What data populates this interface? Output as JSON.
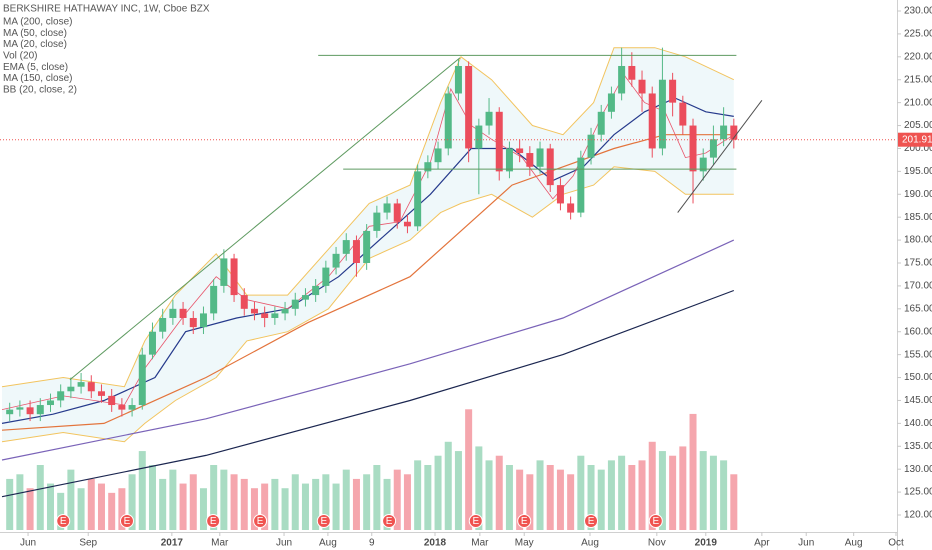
{
  "chart_data": {
    "type": "candlestick",
    "title": "BERKSHIRE HATHAWAY INC, 1W, Cboe BZX",
    "xlim": [
      -0.4,
      175.5
    ],
    "ylim": [
      120,
      230
    ],
    "yticks": [
      {
        "value": 120,
        "label": "120.00"
      },
      {
        "value": 125,
        "label": "125.00"
      },
      {
        "value": 130,
        "label": "130.00"
      },
      {
        "value": 135,
        "label": "135.00"
      },
      {
        "value": 140,
        "label": "140.00"
      },
      {
        "value": 145,
        "label": "145.00"
      },
      {
        "value": 150,
        "label": "150.00"
      },
      {
        "value": 155,
        "label": "155.00"
      },
      {
        "value": 160,
        "label": "160.00"
      },
      {
        "value": 165,
        "label": "165.00"
      },
      {
        "value": 170,
        "label": "170.00"
      },
      {
        "value": 175,
        "label": "175.00"
      },
      {
        "value": 180,
        "label": "180.00"
      },
      {
        "value": 185,
        "label": "185.00"
      },
      {
        "value": 190,
        "label": "190.00"
      },
      {
        "value": 195,
        "label": "195.00"
      },
      {
        "value": 200,
        "label": "200.00"
      },
      {
        "value": 205,
        "label": "205.00"
      },
      {
        "value": 210,
        "label": "210.00"
      },
      {
        "value": 215,
        "label": "215.00"
      },
      {
        "value": 220,
        "label": "220.00"
      },
      {
        "value": 225,
        "label": "225.00"
      },
      {
        "value": 230,
        "label": "230.00"
      }
    ],
    "xticks": [
      {
        "value": 5.1,
        "label": "Jun"
      },
      {
        "value": 16.9,
        "label": "Sep"
      },
      {
        "value": 33.3,
        "label": "2017"
      },
      {
        "value": 42.7,
        "label": "Mar"
      },
      {
        "value": 55.3,
        "label": "Jun"
      },
      {
        "value": 63.9,
        "label": "Aug"
      },
      {
        "value": 72.5,
        "label": "9"
      },
      {
        "value": 84.9,
        "label": "2018"
      },
      {
        "value": 93.7,
        "label": "Mar"
      },
      {
        "value": 102.4,
        "label": "May"
      },
      {
        "value": 115.3,
        "label": "Aug"
      },
      {
        "value": 128.4,
        "label": "Nov"
      },
      {
        "value": 138,
        "label": "2019"
      },
      {
        "value": 149,
        "label": "Apr"
      },
      {
        "value": 157.7,
        "label": "Jun"
      },
      {
        "value": 167,
        "label": "Aug"
      },
      {
        "value": 175.3,
        "label": "Oct"
      }
    ],
    "up_color": "#53b987",
    "down_color": "#eb4d5c",
    "x": [
      1.5,
      3.5,
      5.5,
      7.5,
      9.5,
      11.5,
      13.5,
      15.5,
      17.5,
      19.5,
      21.5,
      23.5,
      25.5,
      27.5,
      29.5,
      31.5,
      33.5,
      35.5,
      37.5,
      39.5,
      41.5,
      43.5,
      45.5,
      47.5,
      49.5,
      51.5,
      53.5,
      55.5,
      57.5,
      59.5,
      61.5,
      63.5,
      65.5,
      67.5,
      69.5,
      71.5,
      73.5,
      75.5,
      77.5,
      79.5,
      81.5,
      83.5,
      85.5,
      87.5,
      89.5,
      91.5,
      93.5,
      95.5,
      97.5,
      99.5,
      101.5,
      103.5,
      105.5,
      107.5,
      109.5,
      111.5,
      113.5,
      115.5,
      117.5,
      119.5,
      121.5,
      123.5,
      125.5,
      127.5,
      129.5,
      131.5,
      133.5,
      135.5,
      137.5,
      139.5,
      141.5,
      143.5
    ],
    "open": [
      142,
      143,
      143.5,
      142,
      144,
      145,
      147,
      148,
      149,
      147,
      146,
      144,
      143,
      144,
      155,
      160,
      163,
      165,
      163,
      161,
      164,
      170,
      176,
      168,
      165,
      164,
      163,
      164,
      165,
      167,
      168,
      170,
      174,
      177,
      180,
      175,
      182,
      186,
      188,
      184,
      183,
      195,
      197,
      200,
      212,
      218,
      200,
      205,
      208,
      195,
      200,
      199,
      196,
      200,
      192,
      188,
      186,
      198,
      203,
      208,
      212,
      218,
      215,
      212,
      200,
      215,
      210,
      205,
      195,
      198,
      202,
      205
    ],
    "high": [
      144.5,
      145,
      145,
      145.5,
      146.5,
      148.5,
      150,
      151,
      150.5,
      148.5,
      147.5,
      145.5,
      145.5,
      156.5,
      162,
      165,
      167,
      166.5,
      164.5,
      165.5,
      171.5,
      178,
      177,
      169.5,
      166.5,
      165.5,
      165.5,
      166.5,
      168.5,
      169.5,
      171.5,
      175.5,
      178.5,
      181.5,
      181,
      183.5,
      187.5,
      189.5,
      189,
      185.5,
      196.5,
      198.5,
      201.5,
      213.5,
      219.5,
      219,
      206.5,
      211,
      209,
      201.5,
      202,
      200.5,
      201.5,
      201,
      193.5,
      189.5,
      199.5,
      204.5,
      209.5,
      213.5,
      222,
      221,
      217,
      213.5,
      222,
      216.5,
      211.5,
      206.5,
      200,
      205,
      209,
      206.5
    ],
    "low": [
      140.5,
      141.5,
      140.5,
      140.5,
      142.5,
      143.5,
      145.5,
      146.5,
      145.5,
      144.5,
      142.5,
      141.5,
      141.5,
      143,
      154,
      158.5,
      161.5,
      161.5,
      159.5,
      159.5,
      162.5,
      168.5,
      166.5,
      163.5,
      162.5,
      161,
      161.5,
      162.5,
      163.5,
      165.5,
      166.5,
      168.5,
      172.5,
      175.5,
      172,
      173.5,
      180.5,
      184.5,
      182.5,
      181.5,
      182,
      193.5,
      195.5,
      198.5,
      210.5,
      197,
      190,
      203,
      193,
      193.5,
      197,
      194,
      194.5,
      190.5,
      186.5,
      184.5,
      185,
      196.5,
      201.5,
      206.5,
      210.5,
      213.5,
      208,
      198,
      198.5,
      207,
      203,
      188,
      193,
      196.5,
      200.5,
      200
    ],
    "close": [
      143,
      143.5,
      142,
      144,
      145,
      147,
      148,
      149,
      147,
      146,
      144,
      143,
      144,
      155,
      160,
      163,
      165,
      163,
      161,
      164,
      170,
      176,
      168,
      165,
      164,
      163,
      164,
      165,
      167,
      168,
      170,
      174,
      177,
      180,
      175,
      182,
      186,
      188,
      184,
      183,
      195,
      197,
      200,
      212,
      218,
      200,
      205,
      208,
      195,
      200,
      199,
      196,
      200,
      192,
      188,
      186,
      198,
      203,
      208,
      212,
      218,
      215,
      212,
      200,
      215,
      210,
      205,
      195,
      198,
      202,
      205,
      201.91
    ],
    "vlim": [
      0,
      140
    ],
    "volume": [
      55,
      60,
      45,
      70,
      50,
      40,
      65,
      45,
      55,
      50,
      40,
      45,
      60,
      85,
      70,
      55,
      65,
      50,
      60,
      45,
      70,
      65,
      60,
      55,
      45,
      50,
      55,
      45,
      60,
      50,
      55,
      60,
      50,
      65,
      55,
      60,
      70,
      55,
      65,
      60,
      75,
      70,
      80,
      95,
      85,
      130,
      90,
      75,
      80,
      70,
      65,
      60,
      75,
      70,
      65,
      60,
      80,
      70,
      65,
      75,
      80,
      70,
      75,
      95,
      85,
      80,
      90,
      125,
      85,
      80,
      75,
      60
    ],
    "last_price": 201.91,
    "last_color": "#ef5350",
    "series": [
      {
        "name": "MA (200, close)",
        "color": "#1b2650",
        "x": [
          0,
          40,
          80,
          110,
          143.5
        ],
        "values": [
          124,
          133,
          145,
          155,
          169
        ]
      },
      {
        "name": "MA (50, close)",
        "color": "#e3743c",
        "x": [
          0,
          20,
          40,
          60,
          80,
          90,
          100,
          110,
          120,
          130,
          143.5
        ],
        "values": [
          138.5,
          140,
          150,
          162,
          172,
          182,
          192,
          196,
          200,
          203,
          203
        ]
      },
      {
        "name": "MA (20, close)",
        "color": "#263a8c",
        "x": [
          0,
          10,
          20,
          30,
          36,
          46,
          56,
          66,
          76,
          84,
          92,
          100,
          108,
          114,
          120,
          126,
          132,
          138,
          143.5
        ],
        "values": [
          140,
          142,
          145,
          150,
          160,
          163,
          165,
          172,
          182,
          190,
          200,
          200,
          193,
          196,
          203,
          208,
          211,
          208,
          207
        ]
      },
      {
        "name": "Vol (20)",
        "color": "#2962ff"
      },
      {
        "name": "EMA (5, close)",
        "color": "#e8556b",
        "x": [
          0,
          12,
          24,
          28,
          36,
          42,
          48,
          56,
          64,
          72,
          78,
          84,
          88,
          92,
          96,
          102,
          108,
          112,
          118,
          122,
          126,
          130,
          134,
          138,
          143.5
        ],
        "values": [
          143,
          146,
          144,
          152,
          164,
          172,
          167,
          165,
          172,
          183,
          184,
          197,
          213,
          205,
          202,
          198,
          189,
          194,
          208,
          216,
          210,
          208,
          198,
          199,
          203
        ]
      },
      {
        "name": "MA (150, close)",
        "color": "#7a63b8",
        "x": [
          0,
          40,
          80,
          110,
          143.5
        ],
        "values": [
          132,
          141,
          153,
          163,
          180
        ]
      },
      {
        "name": "BB (20, close, 2)",
        "color": "#f2c45f",
        "x": [
          0,
          12,
          24,
          28,
          34,
          42,
          48,
          56,
          64,
          72,
          80,
          86,
          90,
          96,
          104,
          110,
          116,
          120,
          128,
          134,
          143.5
        ],
        "upper": [
          148,
          150,
          148,
          158,
          168,
          177,
          168,
          168,
          178,
          188,
          192,
          210,
          220,
          215,
          205,
          203,
          210,
          222,
          222,
          220,
          215
        ],
        "lower": [
          136,
          138,
          136,
          140,
          145,
          150,
          158,
          160,
          165,
          176,
          180,
          186,
          188,
          190,
          185,
          190,
          192,
          196,
          195,
          190,
          190
        ]
      }
    ],
    "drawings": [
      {
        "color": "#5e9a60",
        "x": [
          13.3,
          89.8
        ],
        "values": [
          149.5,
          219.8
        ]
      },
      {
        "color": "#5e9a60",
        "x": [
          62,
          144
        ],
        "values": [
          220.3,
          220.3
        ]
      },
      {
        "color": "#5e9a60",
        "x": [
          66.9,
          144
        ],
        "values": [
          195.5,
          195.5
        ]
      },
      {
        "color": "#505050",
        "x": [
          132.5,
          149
        ],
        "values": [
          186,
          210.5
        ]
      }
    ],
    "earnings": {
      "label": "E",
      "color": "#f05350",
      "x": [
        12,
        24.5,
        41.4,
        50.6,
        63.1,
        75.9,
        92.9,
        102.4,
        115.5,
        128.2
      ]
    }
  }
}
